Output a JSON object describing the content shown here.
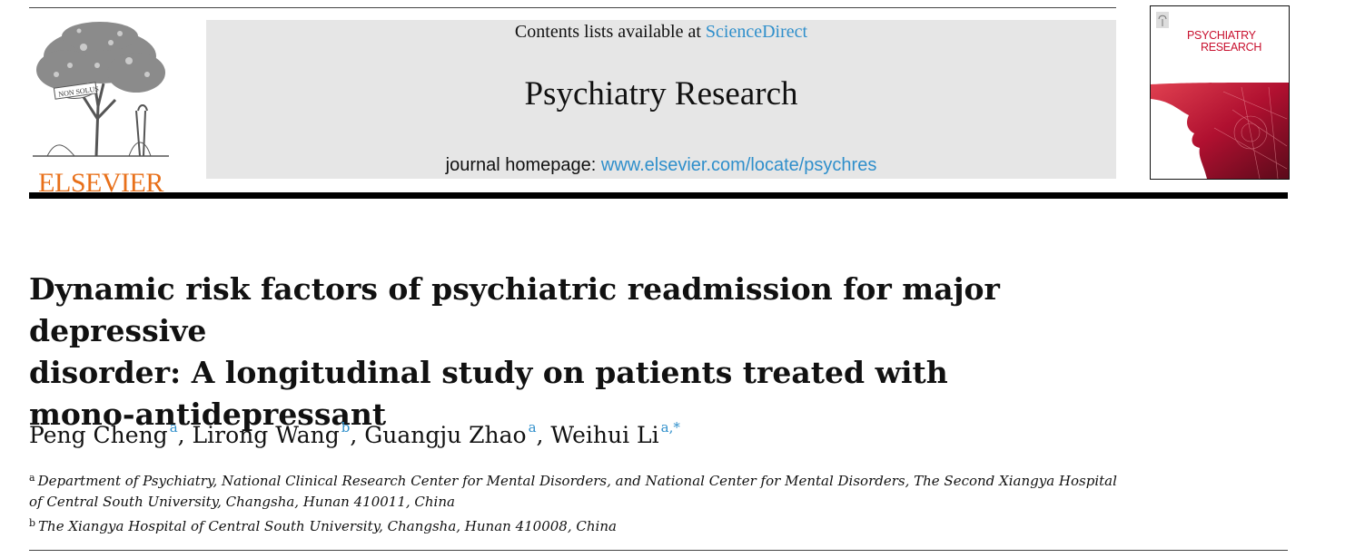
{
  "publisher": {
    "logo_text": "ELSEVIER",
    "logo_motto": "NON SOLUS",
    "brand_color": "#e8701a"
  },
  "banner": {
    "contents_prefix": "Contents lists available at ",
    "sciencedirect_label": "ScienceDirect",
    "journal_title": "Psychiatry Research",
    "homepage_prefix": "journal homepage: ",
    "homepage_url": "www.elsevier.com/locate/psychres",
    "link_color": "#2f8fcb"
  },
  "cover": {
    "title_line1": "PSYCHIATRY",
    "title_line2": "RESEARCH",
    "accent_color": "#c8102e"
  },
  "article": {
    "title_lines": [
      "Dynamic risk factors of psychiatric readmission for major depressive",
      "disorder: A longitudinal study on patients treated with",
      "mono-antidepressant"
    ],
    "authors": [
      {
        "name": "Peng Cheng",
        "affil": "a"
      },
      {
        "name": "Lirong Wang",
        "affil": "b"
      },
      {
        "name": "Guangju Zhao",
        "affil": "a"
      },
      {
        "name": "Weihui Li",
        "affil": "a,*"
      }
    ],
    "separator": ", ",
    "affiliations": [
      {
        "mark": "a",
        "text": "Department of Psychiatry, National Clinical Research Center for Mental Disorders, and National Center for Mental Disorders, The Second Xiangya Hospital of Central South University, Changsha, Hunan 410011, China"
      },
      {
        "mark": "b",
        "text": "The Xiangya Hospital of Central South University, Changsha, Hunan 410008, China"
      }
    ]
  }
}
